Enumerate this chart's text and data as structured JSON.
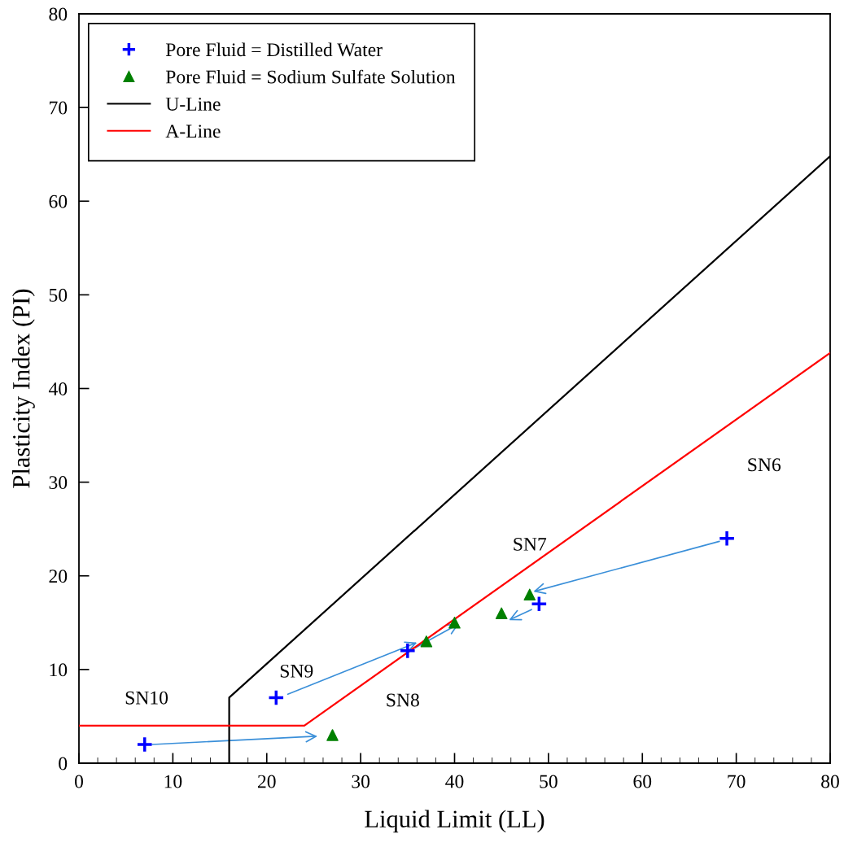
{
  "chart_data": {
    "type": "scatter",
    "xlabel": "Liquid Limit (LL)",
    "ylabel": "Plasticity Index (PI)",
    "xlim": [
      0,
      80
    ],
    "ylim": [
      0,
      80
    ],
    "xticks": [
      0,
      {
        "value": 2,
        "label": null
      },
      {
        "value": 4,
        "label": null
      },
      {
        "value": 6,
        "label": null
      },
      {
        "value": 8,
        "label": null
      },
      10,
      {
        "value": 12,
        "label": null
      },
      {
        "value": 14,
        "label": null
      },
      {
        "value": 16,
        "label": null
      },
      {
        "value": 18,
        "label": null
      },
      20,
      {
        "value": 22,
        "label": null
      },
      {
        "value": 24,
        "label": null
      },
      {
        "value": 26,
        "label": null
      },
      {
        "value": 28,
        "label": null
      },
      30,
      {
        "value": 32,
        "label": null
      },
      {
        "value": 34,
        "label": null
      },
      {
        "value": 36,
        "label": null
      },
      {
        "value": 38,
        "label": null
      },
      40,
      {
        "value": 42,
        "label": null
      },
      {
        "value": 44,
        "label": null
      },
      {
        "value": 46,
        "label": null
      },
      {
        "value": 48,
        "label": null
      },
      50,
      {
        "value": 52,
        "label": null
      },
      {
        "value": 54,
        "label": null
      },
      {
        "value": 56,
        "label": null
      },
      {
        "value": 58,
        "label": null
      },
      60,
      {
        "value": 62,
        "label": null
      },
      {
        "value": 64,
        "label": null
      },
      {
        "value": 66,
        "label": null
      },
      {
        "value": 68,
        "label": null
      },
      70,
      {
        "value": 72,
        "label": null
      },
      {
        "value": 74,
        "label": null
      },
      {
        "value": 76,
        "label": null
      },
      {
        "value": 78,
        "label": null
      },
      80
    ],
    "yticks": [
      0,
      10,
      20,
      30,
      40,
      50,
      60,
      70,
      80
    ],
    "grid": false,
    "legend": "top left",
    "series": [
      {
        "name": "Pore Fluid = Distilled Water",
        "marker": "cross",
        "color": "#0000ff",
        "x": [
          7,
          21,
          35,
          49,
          69
        ],
        "values": [
          2,
          7,
          12,
          17,
          24
        ]
      },
      {
        "name": "Pore Fluid = Sodium Sulfate Solution",
        "marker": "triangle",
        "color": "#008000",
        "x": [
          27,
          37,
          40,
          45,
          48
        ],
        "values": [
          3,
          13,
          15,
          16,
          18
        ]
      },
      {
        "name": "U-Line",
        "type": "line",
        "color": "#000000",
        "x": [
          16,
          16,
          80
        ],
        "values": [
          0,
          7,
          64.8
        ]
      },
      {
        "name": "A-Line",
        "type": "line",
        "color": "#ff0000",
        "x": [
          0,
          24,
          80
        ],
        "values": [
          4,
          4,
          43.8
        ]
      }
    ],
    "annotations": [
      "SN10",
      {
        "text": "SN9",
        "x": 21,
        "y": 7
      },
      "SN8",
      "SN7",
      "SN6"
    ]
  }
}
